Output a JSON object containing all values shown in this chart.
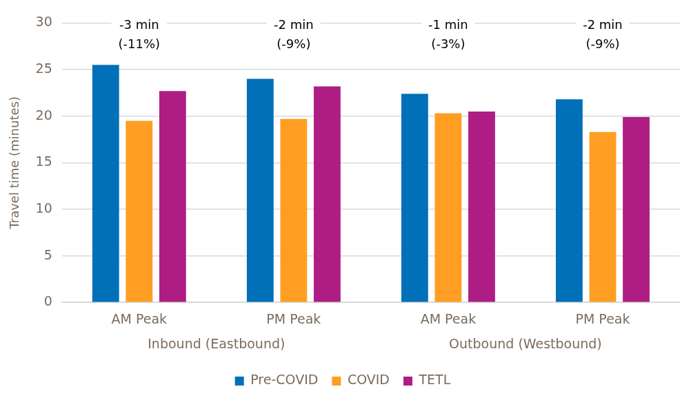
{
  "chart_data": {
    "type": "bar",
    "ylabel": "Travel time (minutes)",
    "categories": [
      "AM Peak",
      "PM Peak",
      "AM Peak",
      "PM Peak"
    ],
    "series": [
      {
        "name": "Pre-COVID",
        "color": "#0070b8",
        "values": [
          25.5,
          24.0,
          22.4,
          21.8
        ]
      },
      {
        "name": "COVID",
        "color": "#ff9e22",
        "values": [
          19.5,
          19.7,
          20.3,
          18.3
        ]
      },
      {
        "name": "TETL",
        "color": "#ae1d84",
        "values": [
          22.7,
          23.2,
          20.5,
          19.9
        ]
      }
    ],
    "ylim": [
      0,
      30
    ],
    "yticks": [
      0,
      5,
      10,
      15,
      20,
      25,
      30
    ],
    "grid": "y",
    "legend": "bottom",
    "annotations": [
      "-3 min\n(-11%)",
      "-2 min\n(-9%)",
      "-1 min\n(-3%)",
      "-2 min\n(-9%)",
      "Inbound (Eastbound)",
      "Outbound (Westbound)"
    ]
  }
}
